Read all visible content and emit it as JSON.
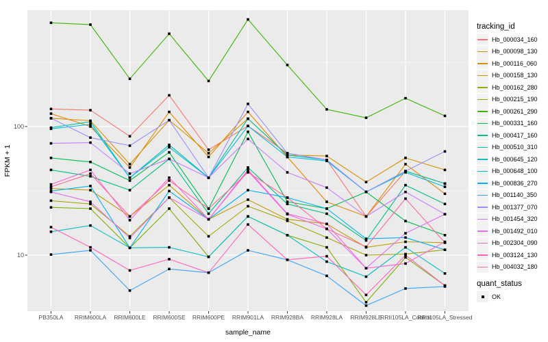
{
  "chart_data": {
    "type": "line",
    "xlabel": "sample_name",
    "ylabel": "FPKM + 1",
    "y_scale": "log10",
    "y_ticks": [
      100,
      10
    ],
    "y_tick_labels": [
      "100",
      "10"
    ],
    "y_minor": [
      316.23,
      31.623
    ],
    "ylim": [
      3.6,
      800
    ],
    "grid": "on",
    "legend_position": "right",
    "legend_title": "tracking_id",
    "legend2_title": "quant_status",
    "legend2_items": [
      {
        "label": "OK",
        "shape": "square",
        "color": "#000000"
      }
    ],
    "marker": {
      "shape": "square",
      "color": "#000000"
    },
    "panel_bg": "#EBEBEB",
    "grid_color": "#FFFFFF",
    "tick_text_color": "#4D4D4D",
    "categories": [
      "PB350LA",
      "RRIM600LA",
      "RRIM600LE",
      "RRIM600SE",
      "RRIM600PE",
      "RRIM901LA",
      "RRIM928BA",
      "RRIM928LA",
      "RRIM928LE",
      "RRII105LA_Control",
      "RRII105LA_Stressed"
    ],
    "series": [
      {
        "name": "Hb_000034_160",
        "color": "#F8766D",
        "values": [
          137,
          134,
          84,
          175,
          66,
          101,
          62,
          55,
          20,
          45,
          36
        ]
      },
      {
        "name": "Hb_000098_130",
        "color": "#E58700",
        "values": [
          126,
          100,
          48,
          130,
          58,
          130,
          58,
          26,
          20,
          51,
          30
        ]
      },
      {
        "name": "Hb_000116_060",
        "color": "#D89000",
        "values": [
          116,
          111,
          51,
          112,
          62,
          115,
          60,
          59,
          37,
          57,
          46
        ]
      },
      {
        "name": "Hb_000158_130",
        "color": "#C09B00",
        "values": [
          33,
          32,
          20,
          35,
          19,
          27,
          19,
          17.5,
          11.5,
          12.7,
          12.5
        ]
      },
      {
        "name": "Hb_000162_280",
        "color": "#A3A500",
        "values": [
          26.5,
          25,
          14,
          28,
          14,
          24,
          18.5,
          13.7,
          10,
          10.2,
          11
        ]
      },
      {
        "name": "Hb_000215_190",
        "color": "#7CAE00",
        "values": [
          23.5,
          23,
          11.4,
          23,
          9.7,
          20,
          14.3,
          11.5,
          4.3,
          9.6,
          5.8
        ]
      },
      {
        "name": "Hb_000261_290",
        "color": "#39B600",
        "values": [
          641,
          620,
          235,
          527,
          226,
          681,
          301,
          136,
          117,
          166,
          121
        ]
      },
      {
        "name": "Hb_000331_160",
        "color": "#00BB4E",
        "values": [
          57,
          53,
          38,
          63,
          23,
          91,
          26,
          23,
          31,
          18.4,
          14.3
        ]
      },
      {
        "name": "Hb_000417_160",
        "color": "#00BF7D",
        "values": [
          46,
          41,
          32,
          56,
          21,
          48,
          25,
          21,
          13,
          35,
          25
        ]
      },
      {
        "name": "Hb_000510_310",
        "color": "#00C1A3",
        "values": [
          98,
          109,
          40,
          72,
          40,
          115,
          60,
          55,
          31,
          45,
          36
        ]
      },
      {
        "name": "Hb_000645_120",
        "color": "#00BFC4",
        "values": [
          15.2,
          17,
          11.4,
          11.5,
          9.7,
          20,
          14.3,
          8.9,
          6.8,
          11.5,
          7.2
        ]
      },
      {
        "name": "Hb_000648_100",
        "color": "#00BAE0",
        "values": [
          96,
          104,
          40,
          69,
          40,
          101,
          58,
          54,
          31,
          44,
          34
        ]
      },
      {
        "name": "Hb_000836_270",
        "color": "#00B0F6",
        "values": [
          31.5,
          34.5,
          11.4,
          31.5,
          19,
          32,
          28,
          23,
          13.4,
          13.7,
          11
        ]
      },
      {
        "name": "Hb_001140_350",
        "color": "#35A2FF",
        "values": [
          10.1,
          10.9,
          5.3,
          7.8,
          7.3,
          10.9,
          9.2,
          6.9,
          4.05,
          5.5,
          5.7
        ]
      },
      {
        "name": "Hb_001377_070",
        "color": "#9590FF",
        "values": [
          116,
          82,
          71,
          112,
          40,
          150,
          62,
          55,
          31,
          45,
          64
        ]
      },
      {
        "name": "Hb_001454_320",
        "color": "#C77CFF",
        "values": [
          74,
          75,
          43,
          56,
          40,
          80,
          44,
          33.5,
          20,
          31,
          20.8
        ]
      },
      {
        "name": "Hb_001492_010",
        "color": "#E76BF3",
        "values": [
          31,
          26,
          13.6,
          28,
          19,
          45,
          20.8,
          16,
          7.9,
          14.8,
          20.8
        ]
      },
      {
        "name": "Hb_002304_090",
        "color": "#FA62DB",
        "values": [
          35.5,
          46,
          18.7,
          40,
          19,
          46,
          21,
          17.5,
          7.9,
          8.6,
          12.7
        ]
      },
      {
        "name": "Hb_003124_130",
        "color": "#FF62BC",
        "values": [
          16.5,
          11.5,
          7.6,
          9.3,
          7.3,
          17.3,
          9.2,
          9.8,
          4.9,
          10,
          5.8
        ]
      },
      {
        "name": "Hb_004032_180",
        "color": "#FF6A98",
        "values": [
          34,
          43,
          20,
          38,
          23,
          44,
          28,
          16,
          11.6,
          27.5,
          12.5
        ]
      }
    ]
  }
}
